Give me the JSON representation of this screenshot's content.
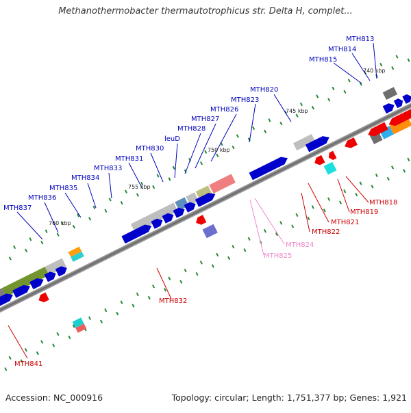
{
  "title": "Methanothermobacter thermautotrophicus str. Delta H, complet...",
  "footer": {
    "accession": "Accession: NC_000916",
    "summary": "Topology: circular; Length: 1,751,377 bp; Genes: 1,921"
  },
  "colors": {
    "forward_strand": "#0000cc",
    "reverse_strand": "#ee0000",
    "forward_label": "#0000bb",
    "reverse_label": "#cc0000",
    "rna_label": "#ee88cc",
    "backbone": "#888888"
  },
  "scale_labels": [
    "740 kbp",
    "745 kbp",
    "750 kbp",
    "755 kbp",
    "760 kbp"
  ],
  "forward_genes": [
    "MTH813",
    "MTH814",
    "MTH815",
    "MTH820",
    "MTH823",
    "MTH826",
    "MTH827",
    "MTH828",
    "leuD",
    "MTH830",
    "MTH831",
    "MTH833",
    "MTH834",
    "MTH835",
    "MTH836",
    "MTH837"
  ],
  "reverse_genes": [
    "MTH818",
    "MTH819",
    "MTH821",
    "MTH822",
    "MTH832",
    "MTH841"
  ],
  "rna_genes": [
    "MTH824",
    "MTH825"
  ]
}
